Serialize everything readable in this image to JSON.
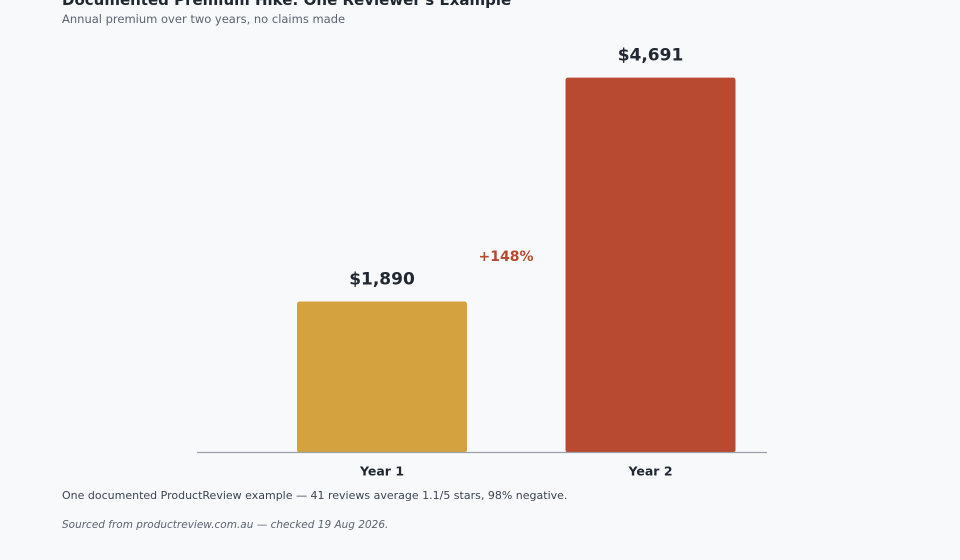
{
  "chart_data": {
    "type": "bar",
    "title": "Documented Premium Hike: One Reviewer's Example",
    "subtitle": "Annual premium over two years, no claims made",
    "categories": [
      "Year 1",
      "Year 2"
    ],
    "values": [
      1890,
      4691
    ],
    "value_labels": [
      "$1,890",
      "$4,691"
    ],
    "bar_colors": [
      "#d4a23f",
      "#b74a30"
    ],
    "annotation": {
      "text": "+148%",
      "color": "#b74a30"
    },
    "ylim": [
      0,
      5200
    ],
    "grid": false,
    "xlabel": "",
    "ylabel": ""
  },
  "footnote": "One documented ProductReview example — 41 reviews average 1.1/5 stars, 98% negative.",
  "source": "Sourced from productreview.com.au — checked 19 Aug 2026.",
  "colors": {
    "background": "#f7f9fb",
    "axis": "#9aa0a8",
    "text": "#222831"
  }
}
